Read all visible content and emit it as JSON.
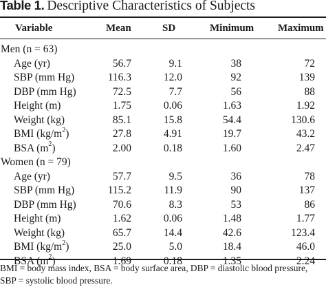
{
  "caption": {
    "label": "Table 1.",
    "title": "Descriptive Characteristics of Subjects"
  },
  "headers": [
    "Variable",
    "Mean",
    "SD",
    "Minimum",
    "Maximum"
  ],
  "groups": [
    {
      "label": "Men (n = 63)",
      "rows": [
        {
          "name": "Age (yr)",
          "sup": "",
          "suffix": "",
          "mean": "56.7",
          "sd": "9.1",
          "min": "38",
          "max": "72"
        },
        {
          "name": "SBP (mm Hg)",
          "sup": "",
          "suffix": "",
          "mean": "116.3",
          "sd": "12.0",
          "min": "92",
          "max": "139"
        },
        {
          "name": "DBP (mm Hg)",
          "sup": "",
          "suffix": "",
          "mean": "72.5",
          "sd": "7.7",
          "min": "56",
          "max": "88"
        },
        {
          "name": "Height (m)",
          "sup": "",
          "suffix": "",
          "mean": "1.75",
          "sd": "0.06",
          "min": "1.63",
          "max": "1.92"
        },
        {
          "name": "Weight (kg)",
          "sup": "",
          "suffix": "",
          "mean": "85.1",
          "sd": "15.8",
          "min": "54.4",
          "max": "130.6"
        },
        {
          "name": "BMI (kg/m",
          "sup": "2",
          "suffix": ")",
          "mean": "27.8",
          "sd": "4.91",
          "min": "19.7",
          "max": "43.2"
        },
        {
          "name": "BSA (m",
          "sup": "2",
          "suffix": ")",
          "mean": "2.00",
          "sd": "0.18",
          "min": "1.60",
          "max": "2.47"
        }
      ]
    },
    {
      "label": "Women (n = 79)",
      "rows": [
        {
          "name": "Age (yr)",
          "sup": "",
          "suffix": "",
          "mean": "57.7",
          "sd": "9.5",
          "min": "36",
          "max": "78"
        },
        {
          "name": "SBP (mm Hg)",
          "sup": "",
          "suffix": "",
          "mean": "115.2",
          "sd": "11.9",
          "min": "90",
          "max": "137"
        },
        {
          "name": "DBP (mm Hg)",
          "sup": "",
          "suffix": "",
          "mean": "70.6",
          "sd": "8.3",
          "min": "53",
          "max": "86"
        },
        {
          "name": "Height (m)",
          "sup": "",
          "suffix": "",
          "mean": "1.62",
          "sd": "0.06",
          "min": "1.48",
          "max": "1.77"
        },
        {
          "name": "Weight (kg)",
          "sup": "",
          "suffix": "",
          "mean": "65.7",
          "sd": "14.4",
          "min": "42.6",
          "max": "123.4"
        },
        {
          "name": "BMI (kg/m",
          "sup": "2",
          "suffix": ")",
          "mean": "25.0",
          "sd": "5.0",
          "min": "18.4",
          "max": "46.0"
        },
        {
          "name": "BSA (m",
          "sup": "2",
          "suffix": ")",
          "mean": "1.69",
          "sd": "0.18",
          "min": "1.35",
          "max": "2.24"
        }
      ]
    }
  ],
  "footnote": "BMI = body mass index, BSA = body surface area, DBP = diastolic blood pressure,\nSBP = systolic blood pressure."
}
